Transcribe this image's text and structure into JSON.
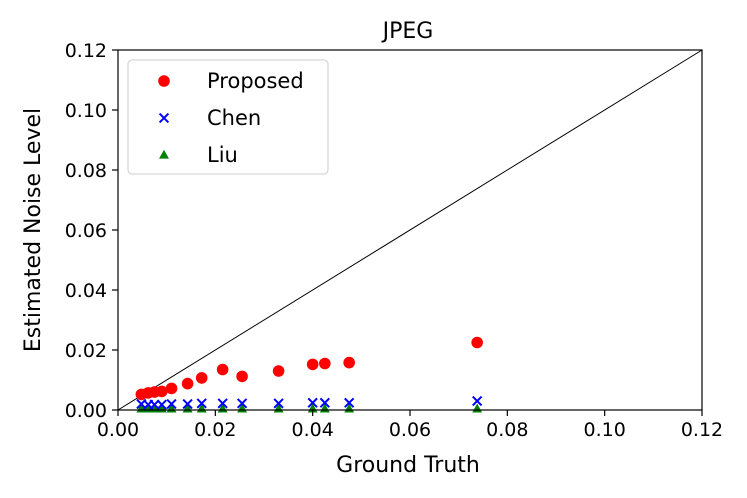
{
  "chart_data": {
    "type": "scatter",
    "title": "JPEG",
    "xlabel": "Ground Truth",
    "ylabel": "Estimated Noise Level",
    "xlim": [
      0,
      0.12
    ],
    "ylim": [
      0,
      0.12
    ],
    "x_ticks": [
      "0.00",
      "0.02",
      "0.04",
      "0.06",
      "0.08",
      "0.10",
      "0.12"
    ],
    "y_ticks": [
      "0.00",
      "0.02",
      "0.04",
      "0.06",
      "0.08",
      "0.10",
      "0.12"
    ],
    "grid": false,
    "legend_position": "top-left",
    "reference_line": "y = x",
    "series": [
      {
        "name": "Proposed",
        "marker": "circle",
        "color": "#ff0000",
        "points": [
          [
            0.0048,
            0.0052
          ],
          [
            0.0062,
            0.0057
          ],
          [
            0.0075,
            0.006
          ],
          [
            0.009,
            0.0062
          ],
          [
            0.011,
            0.0072
          ],
          [
            0.0143,
            0.0088
          ],
          [
            0.0172,
            0.0107
          ],
          [
            0.0215,
            0.0135
          ],
          [
            0.0255,
            0.0112
          ],
          [
            0.033,
            0.013
          ],
          [
            0.04,
            0.0152
          ],
          [
            0.0425,
            0.0155
          ],
          [
            0.0475,
            0.0158
          ],
          [
            0.0738,
            0.0225
          ]
        ]
      },
      {
        "name": "Chen",
        "marker": "x",
        "color": "#0000ff",
        "points": [
          [
            0.0048,
            0.002
          ],
          [
            0.0062,
            0.0018
          ],
          [
            0.0075,
            0.0018
          ],
          [
            0.009,
            0.0018
          ],
          [
            0.011,
            0.002
          ],
          [
            0.0143,
            0.002
          ],
          [
            0.0172,
            0.0022
          ],
          [
            0.0215,
            0.0022
          ],
          [
            0.0255,
            0.0022
          ],
          [
            0.033,
            0.0022
          ],
          [
            0.04,
            0.0024
          ],
          [
            0.0425,
            0.0024
          ],
          [
            0.0475,
            0.0024
          ],
          [
            0.0738,
            0.003
          ]
        ]
      },
      {
        "name": "Liu",
        "marker": "triangle",
        "color": "#008000",
        "points": [
          [
            0.0048,
            0.0004
          ],
          [
            0.0062,
            0.0004
          ],
          [
            0.0075,
            0.0004
          ],
          [
            0.009,
            0.0004
          ],
          [
            0.011,
            0.0004
          ],
          [
            0.0143,
            0.0004
          ],
          [
            0.0172,
            0.0004
          ],
          [
            0.0215,
            0.0004
          ],
          [
            0.0255,
            0.0004
          ],
          [
            0.033,
            0.0004
          ],
          [
            0.04,
            0.0004
          ],
          [
            0.0425,
            0.0004
          ],
          [
            0.0475,
            0.0004
          ],
          [
            0.0738,
            0.0004
          ]
        ]
      }
    ]
  }
}
